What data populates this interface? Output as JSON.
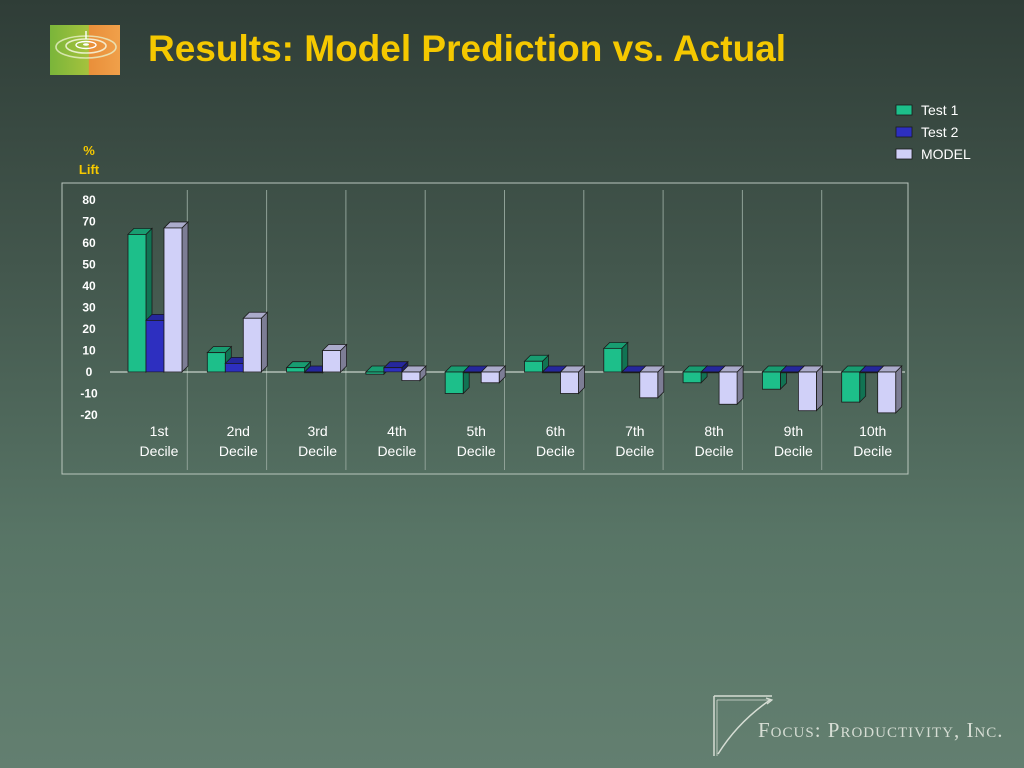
{
  "slide": {
    "title": "Results: Model Prediction vs. Actual",
    "brand": "Focus: Productivity, Inc."
  },
  "colors": {
    "title": "#f5c800",
    "series": [
      "#1dbf8a",
      "#2d2fc0",
      "#d0d0f8"
    ]
  },
  "chart_data": {
    "type": "bar",
    "style": "3d-clustered",
    "ylabel": [
      "%",
      "Lift"
    ],
    "ylim": [
      -20,
      80
    ],
    "yticks": [
      80,
      70,
      60,
      50,
      40,
      30,
      20,
      10,
      0,
      -10,
      -20
    ],
    "categories": [
      [
        "1st",
        "Decile"
      ],
      [
        "2nd",
        "Decile"
      ],
      [
        "3rd",
        "Decile"
      ],
      [
        "4th",
        "Decile"
      ],
      [
        "5th",
        "Decile"
      ],
      [
        "6th",
        "Decile"
      ],
      [
        "7th",
        "Decile"
      ],
      [
        "8th",
        "Decile"
      ],
      [
        "9th",
        "Decile"
      ],
      [
        "10th",
        "Decile"
      ]
    ],
    "series": [
      {
        "name": "Test 1",
        "values": [
          64,
          9,
          2,
          -1,
          -10,
          5,
          11,
          -5,
          -8,
          -14
        ]
      },
      {
        "name": "Test 2",
        "values": [
          24,
          4,
          0,
          2,
          0,
          0,
          0,
          0,
          0,
          0
        ]
      },
      {
        "name": "MODEL",
        "values": [
          67,
          25,
          10,
          -4,
          -5,
          -10,
          -12,
          -15,
          -18,
          -19
        ]
      }
    ],
    "legend_position": "top-right",
    "vertical_gridlines": true
  }
}
